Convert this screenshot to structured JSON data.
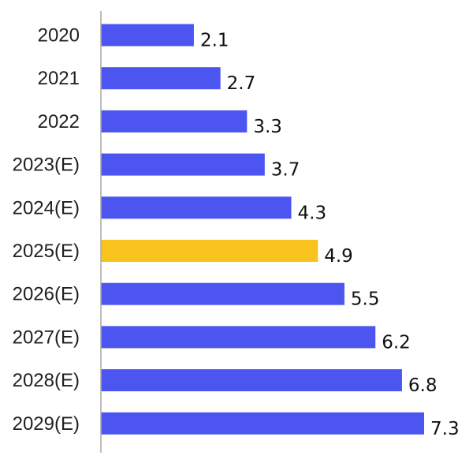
{
  "chart_data": {
    "type": "bar",
    "orientation": "horizontal",
    "categories": [
      "2020",
      "2021",
      "2022",
      "2023(E)",
      "2024(E)",
      "2025(E)",
      "2026(E)",
      "2027(E)",
      "2028(E)",
      "2029(E)"
    ],
    "values": [
      2.1,
      2.7,
      3.3,
      3.7,
      4.3,
      4.9,
      5.5,
      6.2,
      6.8,
      7.3
    ],
    "data_labels": [
      "2.1",
      "2.7",
      "3.3",
      "3.7",
      "4.3",
      "4.9",
      "5.5",
      "6.2",
      "6.8",
      "7.3"
    ],
    "highlight_category": "2025(E)",
    "colors": {
      "bar": "#4c55f0",
      "highlight": "#f7c31c",
      "axis": "#a9a9a9"
    },
    "xlim": [
      0,
      7.3
    ],
    "grid": false,
    "legend": "none"
  }
}
